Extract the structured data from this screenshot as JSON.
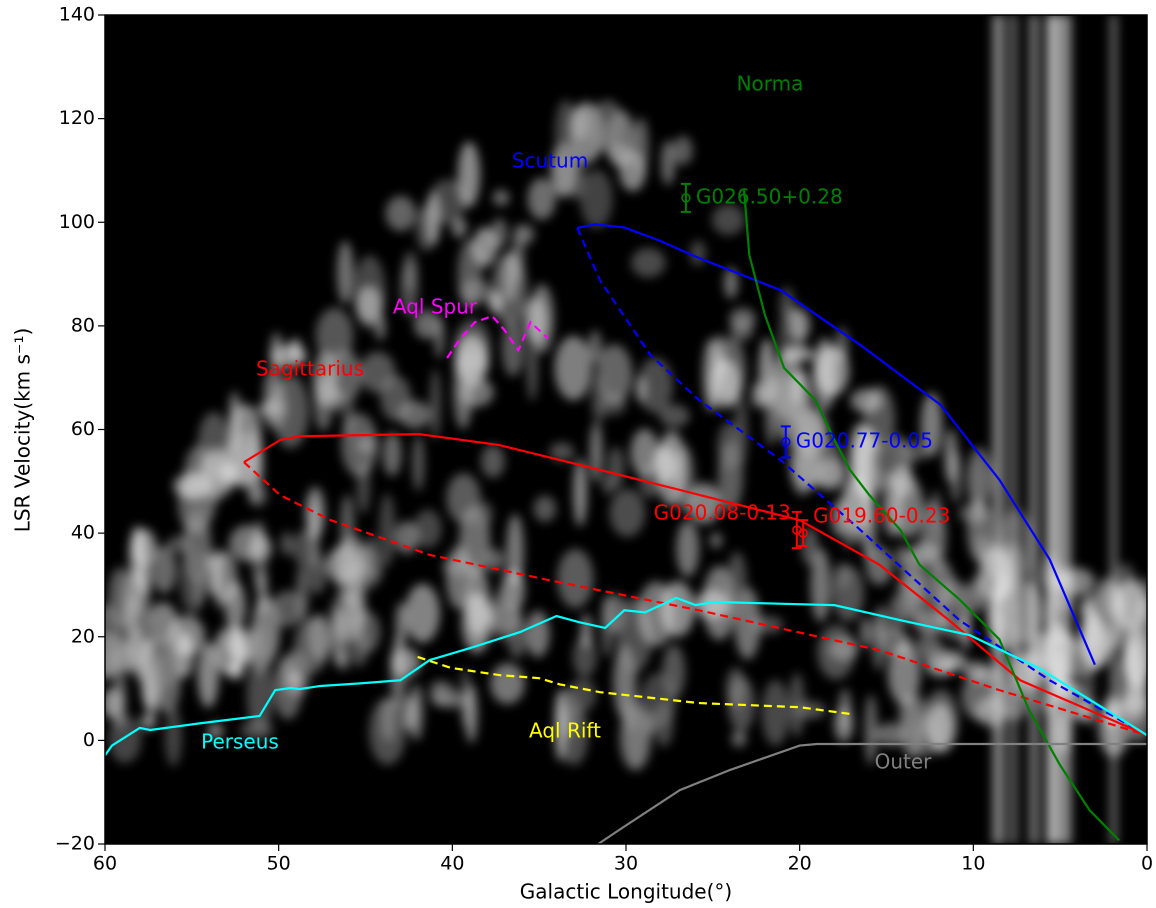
{
  "chart_data": {
    "type": "line",
    "xlabel": "Galactic Longitude(°)",
    "ylabel": "LSR Velocity(km s⁻¹)",
    "xlim": [
      60,
      0
    ],
    "ylim": [
      -20,
      140
    ],
    "xticks": [
      60,
      50,
      40,
      30,
      20,
      10,
      0
    ],
    "yticks": [
      {
        "value": -20,
        "label": "−20"
      },
      0,
      20,
      40,
      60,
      80,
      100,
      120,
      140
    ],
    "series": [
      {
        "name": "Scutum",
        "color": "#0000ff",
        "style": "solid",
        "x": [
          32.8,
          31.8,
          30.1,
          28.1,
          25.8,
          21.1,
          16.5,
          11.9,
          8.5,
          5.6,
          3.0
        ],
        "values": [
          98.9,
          99.6,
          99.0,
          96.5,
          93.1,
          86.9,
          76.3,
          64.8,
          50.3,
          34.9,
          14.6
        ]
      },
      {
        "color": "#0000ff",
        "style": "dashed",
        "x": [
          32.8,
          31.5,
          28.6,
          25.8,
          21.1,
          16.5,
          10.8,
          5.6,
          0
        ],
        "values": [
          98.9,
          88.8,
          74.4,
          65.7,
          54.1,
          40.6,
          23.2,
          11.6,
          1.0
        ]
      },
      {
        "name": "Sagittarius",
        "color": "#ff0000",
        "style": "solid",
        "x": [
          52.0,
          49.9,
          48.8,
          41.9,
          37.3,
          31.5,
          25.8,
          20.0,
          15.4,
          11.4,
          7.3,
          0
        ],
        "values": [
          53.7,
          58.0,
          58.7,
          59.1,
          57.0,
          52.2,
          47.4,
          42.5,
          33.9,
          23.2,
          11.6,
          1.0
        ]
      },
      {
        "color": "#ff0000",
        "style": "dashed",
        "x": [
          52.0,
          49.9,
          47.0,
          41.3,
          34.4,
          25.8,
          15.4,
          8.5,
          0
        ],
        "values": [
          53.7,
          47.3,
          42.5,
          35.8,
          30.9,
          25.1,
          17.4,
          9.7,
          1.0
        ]
      },
      {
        "name": "Norma",
        "color": "#008000",
        "style": "solid",
        "x": [
          23.2,
          22.9,
          22.0,
          20.9,
          19.1,
          18.0,
          17.1,
          16.0,
          14.2,
          13.1,
          10.8,
          8.5,
          6.8,
          5.0,
          3.3,
          1.6
        ],
        "values": [
          106.2,
          93.7,
          82.1,
          71.9,
          65.7,
          58.0,
          52.2,
          47.4,
          40.6,
          33.9,
          27.2,
          19.5,
          5.9,
          -4.8,
          -13.5,
          -19.3
        ]
      },
      {
        "name": "Perseus",
        "color": "#00ffff",
        "style": "solid",
        "x": [
          60,
          59.6,
          58.0,
          57.4,
          54.5,
          51.1,
          50.2,
          49.3,
          48.8,
          47.6,
          45.3,
          43.0,
          41.3,
          39.0,
          36.1,
          34.0,
          32.7,
          31.2,
          30.1,
          28.9,
          27.1,
          26.0,
          24.9,
          18.0,
          14.2,
          10.2,
          6.2,
          0
        ],
        "values": [
          -2.9,
          -1.0,
          2.4,
          2.0,
          3.3,
          4.7,
          9.7,
          10.1,
          9.9,
          10.5,
          11.0,
          11.6,
          15.5,
          17.8,
          20.9,
          24.0,
          22.8,
          21.7,
          25.1,
          24.7,
          27.5,
          26.1,
          26.7,
          26.1,
          23.2,
          20.3,
          13.9,
          1.0
        ]
      },
      {
        "name": "Aql Spur",
        "color": "#ff00ff",
        "style": "dashed",
        "x": [
          40.3,
          39.6,
          38.7,
          37.7,
          37.0,
          36.2,
          35.5,
          34.5
        ],
        "values": [
          73.8,
          77.3,
          80.7,
          81.9,
          79.2,
          75.3,
          80.7,
          77.6
        ]
      },
      {
        "name": "Aql Rift",
        "color": "#ffff00",
        "style": "dashed",
        "x": [
          42.0,
          40.1,
          37.3,
          35.0,
          33.8,
          31.5,
          25.8,
          20.0,
          17.1
        ],
        "values": [
          16.1,
          14.0,
          12.6,
          12.0,
          10.8,
          9.3,
          7.2,
          6.4,
          5.1
        ]
      },
      {
        "name": "Outer",
        "color": "#808080",
        "style": "solid",
        "x": [
          31.6,
          30.4,
          26.9,
          24.0,
          20.0,
          19.0,
          0
        ],
        "values": [
          -20,
          -17.3,
          -9.6,
          -5.7,
          -1.0,
          -0.7,
          -0.7
        ]
      }
    ],
    "sources": [
      {
        "name": "G026.50+0.28",
        "color": "#008000",
        "x": 26.55,
        "y": 104.7,
        "error": 2.7
      },
      {
        "name": "G020.77-0.05",
        "color": "#0000ff",
        "x": 20.8,
        "y": 57.6,
        "error": 3.0
      },
      {
        "name": "G020.08-0.13",
        "color": "#ff0000",
        "x": 20.16,
        "y": 40.6,
        "error": 3.5
      },
      {
        "name": "G019.60-0.23",
        "color": "#ff0000",
        "x": 19.8,
        "y": 40.0,
        "error": 2.5
      }
    ]
  }
}
